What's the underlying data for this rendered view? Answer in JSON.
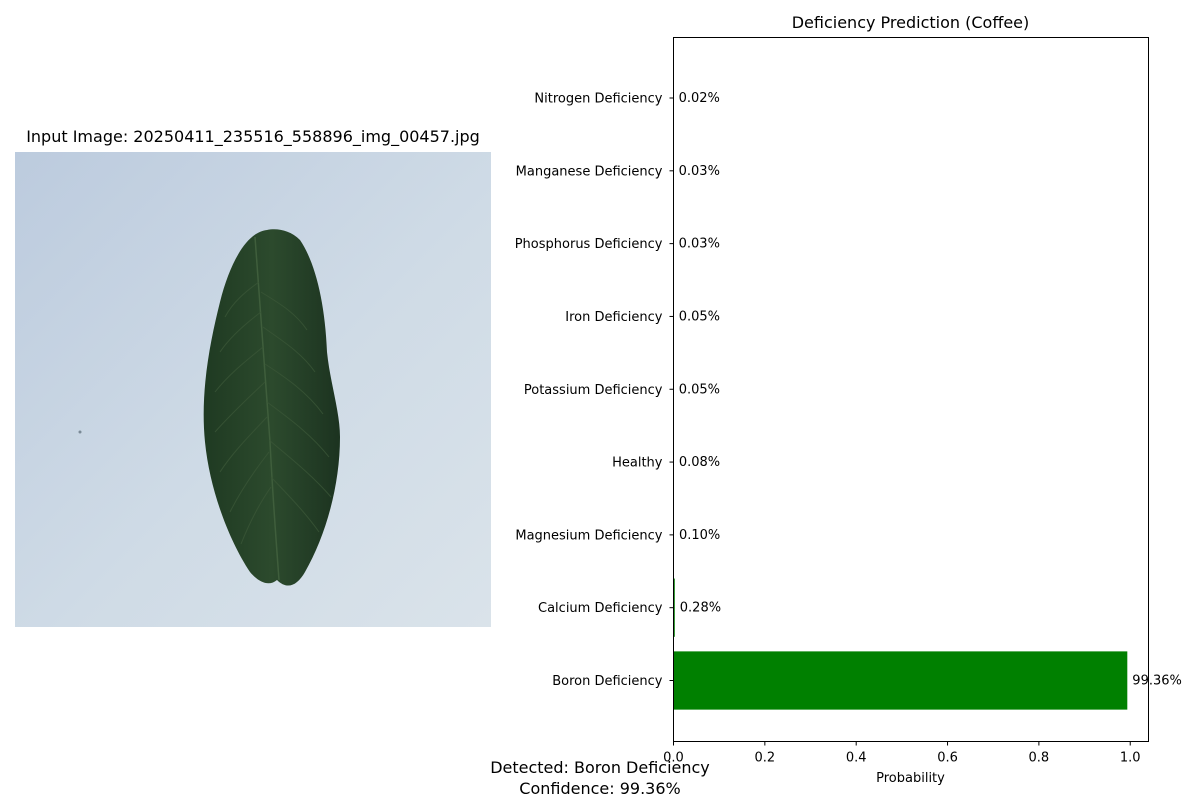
{
  "image_panel": {
    "title": "Input Image: 20250411_235516_558896_img_00457.jpg"
  },
  "result": {
    "detected": "Detected: Boron Deficiency",
    "confidence": "Confidence: 99.36%"
  },
  "chart_data": {
    "type": "bar",
    "orientation": "horizontal",
    "title": "Deficiency Prediction (Coffee)",
    "xlabel": "Probability",
    "ylabel": "",
    "xlim": [
      0,
      1.04
    ],
    "xticks": [
      "0.0",
      "0.2",
      "0.4",
      "0.6",
      "0.8",
      "1.0"
    ],
    "grid": false,
    "categories": [
      "Boron Deficiency",
      "Calcium Deficiency",
      "Magnesium Deficiency",
      "Healthy",
      "Potassium Deficiency",
      "Iron Deficiency",
      "Phosphorus Deficiency",
      "Manganese Deficiency",
      "Nitrogen Deficiency"
    ],
    "values": [
      0.9936,
      0.0028,
      0.001,
      0.0008,
      0.0005,
      0.0005,
      0.0003,
      0.0003,
      0.0002
    ],
    "value_labels": [
      "99.36%",
      "0.28%",
      "0.10%",
      "0.08%",
      "0.05%",
      "0.05%",
      "0.03%",
      "0.03%",
      "0.02%"
    ],
    "bar_color": "#008000"
  }
}
